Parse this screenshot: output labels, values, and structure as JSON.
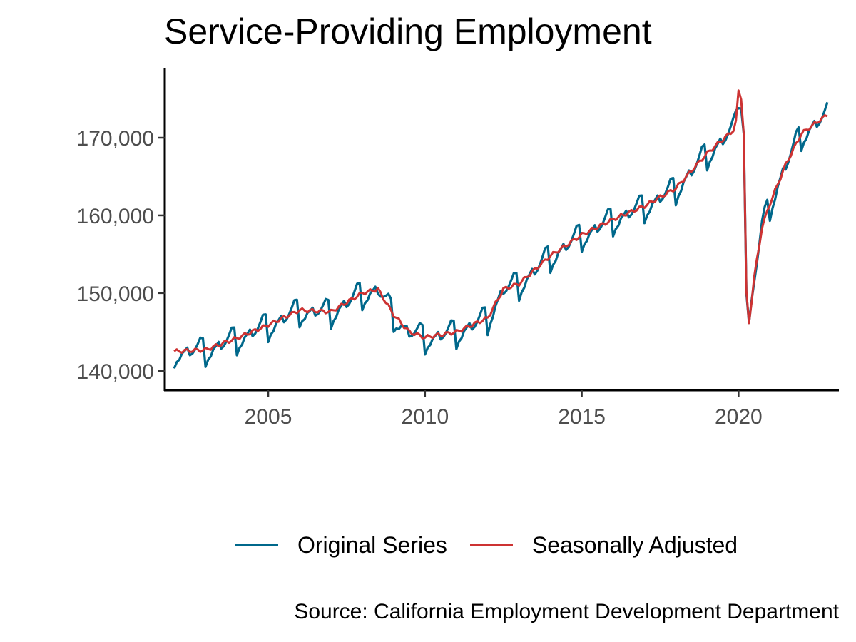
{
  "chart_data": {
    "type": "line",
    "title": "Service-Providing Employment",
    "xlabel": "",
    "ylabel": "",
    "x_range": [
      2001.7,
      2023.2
    ],
    "ylim": [
      137500,
      179000
    ],
    "x_ticks": [
      {
        "value": 2005,
        "label": "2005"
      },
      {
        "value": 2010,
        "label": "2010"
      },
      {
        "value": 2015,
        "label": "2015"
      },
      {
        "value": 2020,
        "label": "2020"
      }
    ],
    "y_ticks": [
      {
        "value": 140000,
        "label": "140,000"
      },
      {
        "value": 150000,
        "label": "150,000"
      },
      {
        "value": 160000,
        "label": "160,000"
      },
      {
        "value": 170000,
        "label": "170,000"
      }
    ],
    "grid": false,
    "legend_position": "bottom",
    "source": "Source: California Employment Development Department",
    "series": [
      {
        "name": "Original Series",
        "color": "#00688b",
        "model": "seasonal",
        "anchors": [
          [
            2002.0,
            142500
          ],
          [
            2003.0,
            142700
          ],
          [
            2004.0,
            144200
          ],
          [
            2005.0,
            145900
          ],
          [
            2006.0,
            147800
          ],
          [
            2007.0,
            147600
          ],
          [
            2008.0,
            150000
          ],
          [
            2008.5,
            150500
          ],
          [
            2009.0,
            147200
          ],
          [
            2009.5,
            145000
          ],
          [
            2010.0,
            144300
          ],
          [
            2011.0,
            145000
          ],
          [
            2012.0,
            146800
          ],
          [
            2012.5,
            150500
          ],
          [
            2013.0,
            151200
          ],
          [
            2014.0,
            154800
          ],
          [
            2015.0,
            157500
          ],
          [
            2016.0,
            159500
          ],
          [
            2017.0,
            161200
          ],
          [
            2018.0,
            163500
          ],
          [
            2019.0,
            168000
          ],
          [
            2019.9,
            171200
          ],
          [
            2020.0,
            176000
          ],
          [
            2020.15,
            174500
          ],
          [
            2020.25,
            150000
          ],
          [
            2020.3,
            145000
          ],
          [
            2020.5,
            152000
          ],
          [
            2020.75,
            158500
          ],
          [
            2021.0,
            161500
          ],
          [
            2021.5,
            166500
          ],
          [
            2022.0,
            170500
          ],
          [
            2022.5,
            172000
          ],
          [
            2022.85,
            173000
          ]
        ],
        "seasonal_pattern": [
          -2.2,
          -1.4,
          -1.1,
          -0.3,
          0.0,
          0.4,
          -0.6,
          -0.4,
          0.1,
          0.8,
          1.6,
          1.5
        ]
      },
      {
        "name": "Seasonally Adjusted",
        "color": "#cd3333",
        "model": "trend",
        "anchors": [
          [
            2002.0,
            142500
          ],
          [
            2003.0,
            142700
          ],
          [
            2004.0,
            144200
          ],
          [
            2005.0,
            145900
          ],
          [
            2006.0,
            147800
          ],
          [
            2007.0,
            147600
          ],
          [
            2008.0,
            150000
          ],
          [
            2008.5,
            150500
          ],
          [
            2009.0,
            147200
          ],
          [
            2009.5,
            145000
          ],
          [
            2010.0,
            144300
          ],
          [
            2011.0,
            145000
          ],
          [
            2012.0,
            146800
          ],
          [
            2012.5,
            150500
          ],
          [
            2013.0,
            151200
          ],
          [
            2014.0,
            154800
          ],
          [
            2015.0,
            157500
          ],
          [
            2016.0,
            159500
          ],
          [
            2017.0,
            161200
          ],
          [
            2018.0,
            163500
          ],
          [
            2019.0,
            168000
          ],
          [
            2019.9,
            171200
          ],
          [
            2020.0,
            176000
          ],
          [
            2020.15,
            174500
          ],
          [
            2020.25,
            150000
          ],
          [
            2020.3,
            145000
          ],
          [
            2020.5,
            152000
          ],
          [
            2020.75,
            158500
          ],
          [
            2021.0,
            161500
          ],
          [
            2021.5,
            166500
          ],
          [
            2022.0,
            170500
          ],
          [
            2022.5,
            172000
          ],
          [
            2022.85,
            173000
          ]
        ]
      }
    ]
  }
}
